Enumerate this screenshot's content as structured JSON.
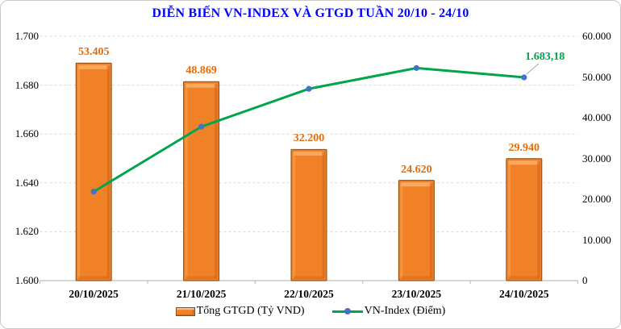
{
  "title": "DIỄN BIẾN VN-INDEX VÀ GTGD TUẦN 20/10 - 24/10",
  "colors": {
    "title": "#0000FF",
    "bar_fill": "#F08126",
    "bar_top_highlight": "#FBAA62",
    "bar_side_shade": "#D2691E",
    "bar_border": "#8A4A10",
    "bar_label": "#E36C09",
    "line": "#00A54E",
    "marker": "#4472C4",
    "line_label": "#00A54E",
    "grid": "#D9D9D9",
    "axis_line": "#BFBFBF",
    "leader": "#A6A6A6",
    "text": "#000000",
    "frame_border": "#C9C9C9"
  },
  "chart_data": {
    "type": "combo-bar-line",
    "categories": [
      "20/10/2025",
      "21/10/2025",
      "22/10/2025",
      "23/10/2025",
      "24/10/2025"
    ],
    "series": [
      {
        "name": "Tổng GTGD (Tỷ VND)",
        "type": "bar",
        "axis": "right",
        "values": [
          53405,
          48869,
          32200,
          24620,
          29940
        ],
        "value_labels": [
          "53.405",
          "48.869",
          "32.200",
          "24.620",
          "29.940"
        ]
      },
      {
        "name": "VN-Index (Điểm)",
        "type": "line",
        "axis": "left",
        "values": [
          1636.4,
          1663.0,
          1678.5,
          1687.0,
          1683.18
        ],
        "point_labels": [
          null,
          null,
          null,
          null,
          "1.683,18"
        ]
      }
    ],
    "left_axis": {
      "min": 1600,
      "max": 1700,
      "step": 20,
      "tick_labels": [
        "1.700",
        "1.680",
        "1.660",
        "1.640",
        "1.620",
        "1.600"
      ]
    },
    "right_axis": {
      "min": 0,
      "max": 60000,
      "step": 10000,
      "tick_labels": [
        "60.000",
        "50.000",
        "40.000",
        "30.000",
        "20.000",
        "10.000",
        "0"
      ]
    },
    "grid": "horizontal-dashed",
    "legend_position": "bottom-center",
    "legend": [
      {
        "label": "Tổng GTGD (Tỷ VND)",
        "swatch": "bar"
      },
      {
        "label": "VN-Index (Điểm)",
        "swatch": "line"
      }
    ]
  }
}
